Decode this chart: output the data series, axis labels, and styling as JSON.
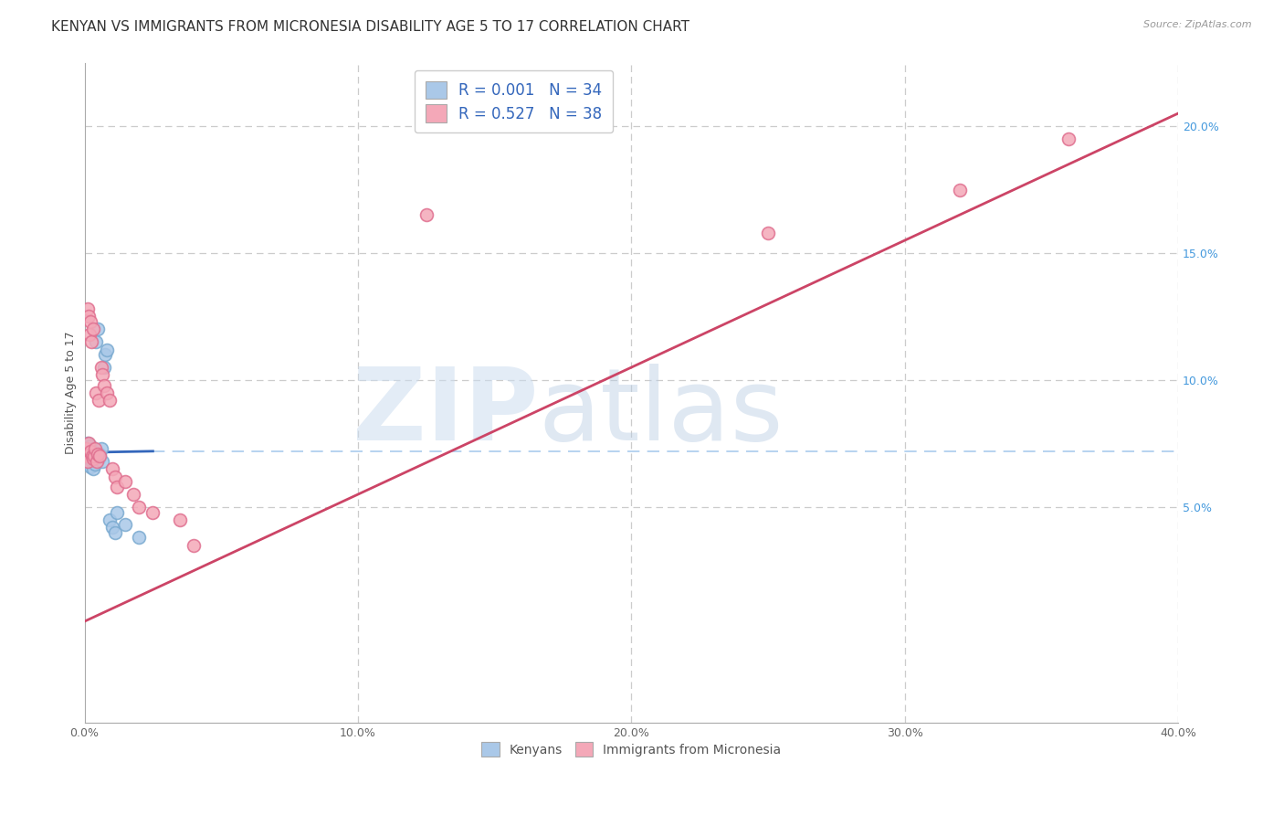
{
  "title": "KENYAN VS IMMIGRANTS FROM MICRONESIA DISABILITY AGE 5 TO 17 CORRELATION CHART",
  "source": "Source: ZipAtlas.com",
  "ylabel": "Disability Age 5 to 17",
  "x_ticks": [
    0.0,
    10.0,
    20.0,
    30.0,
    40.0
  ],
  "y_ticks_right": [
    5.0,
    10.0,
    15.0,
    20.0
  ],
  "xlim": [
    0.0,
    40.0
  ],
  "ylim": [
    -3.5,
    22.5
  ],
  "legend_r1": "R = 0.001   N = 34",
  "legend_r2": "R = 0.527   N = 38",
  "legend_bottom_1": "Kenyans",
  "legend_bottom_2": "Immigrants from Micronesia",
  "watermark_zip": "ZIP",
  "watermark_atlas": "atlas",
  "kenyan_x": [
    0.05,
    0.08,
    0.1,
    0.12,
    0.12,
    0.15,
    0.15,
    0.18,
    0.2,
    0.22,
    0.22,
    0.25,
    0.28,
    0.3,
    0.3,
    0.35,
    0.38,
    0.4,
    0.42,
    0.45,
    0.48,
    0.5,
    0.55,
    0.6,
    0.65,
    0.7,
    0.75,
    0.8,
    0.9,
    1.0,
    1.1,
    1.2,
    1.5,
    2.0
  ],
  "kenyan_y": [
    7.0,
    7.2,
    7.1,
    6.8,
    7.5,
    7.3,
    6.9,
    7.0,
    7.2,
    7.4,
    6.6,
    7.1,
    6.8,
    7.3,
    6.5,
    7.0,
    6.7,
    7.2,
    11.5,
    7.0,
    12.0,
    6.9,
    7.1,
    7.3,
    6.8,
    10.5,
    11.0,
    11.2,
    4.5,
    4.2,
    4.0,
    4.8,
    4.3,
    3.8
  ],
  "micronesia_x": [
    0.05,
    0.08,
    0.1,
    0.12,
    0.15,
    0.15,
    0.18,
    0.2,
    0.22,
    0.25,
    0.28,
    0.3,
    0.3,
    0.35,
    0.38,
    0.4,
    0.45,
    0.48,
    0.5,
    0.55,
    0.6,
    0.65,
    0.7,
    0.8,
    0.9,
    1.0,
    1.1,
    1.2,
    1.5,
    1.8,
    2.0,
    2.5,
    3.5,
    4.0,
    12.5,
    25.0,
    32.0,
    36.0
  ],
  "micronesia_y": [
    7.3,
    7.0,
    6.8,
    12.8,
    12.5,
    7.5,
    11.8,
    7.2,
    12.3,
    11.5,
    7.0,
    12.0,
    6.9,
    7.0,
    7.3,
    9.5,
    6.8,
    7.1,
    9.2,
    7.0,
    10.5,
    10.2,
    9.8,
    9.5,
    9.2,
    6.5,
    6.2,
    5.8,
    6.0,
    5.5,
    5.0,
    4.8,
    4.5,
    3.5,
    16.5,
    15.8,
    17.5,
    19.5
  ],
  "blue_line_x": [
    0.0,
    2.5
  ],
  "blue_line_y": [
    7.15,
    7.2
  ],
  "pink_line_x": [
    0.0,
    40.0
  ],
  "pink_line_y": [
    0.5,
    20.5
  ],
  "blue_line_color": "#3366bb",
  "pink_line_color": "#cc4466",
  "blue_dot_facecolor": "#aac8e8",
  "blue_dot_edgecolor": "#7aaad0",
  "pink_dot_facecolor": "#f4a8b8",
  "pink_dot_edgecolor": "#e07090",
  "grid_color": "#cccccc",
  "dashed_line_y": 7.2,
  "dashed_line_x_start": 2.5,
  "background_color": "#ffffff",
  "title_fontsize": 11,
  "axis_label_fontsize": 9,
  "tick_fontsize": 9,
  "legend_fontsize": 12,
  "dot_size": 100
}
